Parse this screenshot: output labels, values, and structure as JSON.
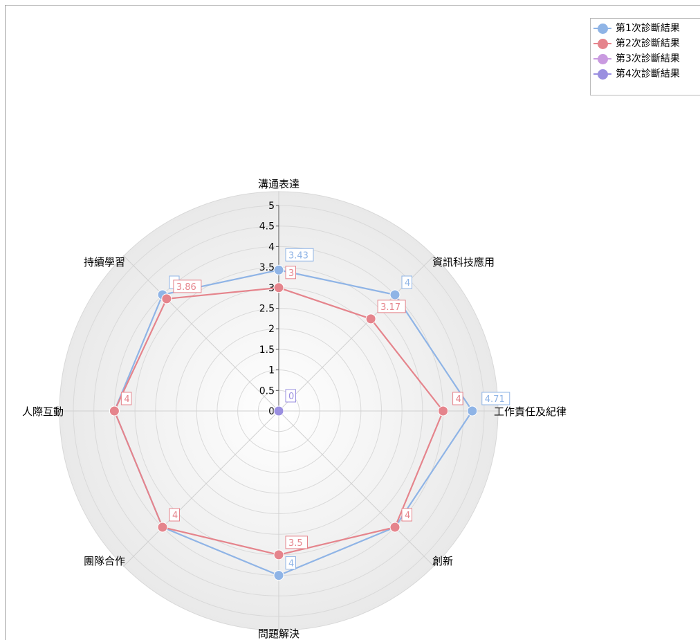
{
  "chart_data": {
    "type": "radar",
    "title": "",
    "axes": [
      "溝通表達",
      "資訊科技應用",
      "工作責任及紀律",
      "創新",
      "問題解決",
      "團隊合作",
      "人際互動",
      "持續學習"
    ],
    "radial_range": [
      0,
      5
    ],
    "radial_ticks": [
      "0",
      "0.5",
      "1",
      "1.5",
      "2",
      "2.5",
      "3",
      "3.5",
      "4",
      "4.5",
      "5"
    ],
    "grid": true,
    "legend_position": "top-right",
    "series": [
      {
        "name": "第1次診斷結果",
        "color": "#8fb4e6",
        "values": [
          3.43,
          4,
          4.71,
          4,
          4,
          4,
          4,
          4
        ]
      },
      {
        "name": "第2次診斷結果",
        "color": "#e5848c",
        "values": [
          3,
          3.17,
          4,
          4,
          3.5,
          4,
          4,
          3.86
        ]
      },
      {
        "name": "第3次診斷結果",
        "color": "#c99ae0",
        "values": [
          0,
          0,
          0,
          0,
          0,
          0,
          0,
          0
        ]
      },
      {
        "name": "第4次診斷結果",
        "color": "#9a8fe0",
        "values": [
          0,
          0,
          0,
          0,
          0,
          0,
          0,
          0
        ]
      }
    ],
    "data_labels": [
      {
        "series": 0,
        "axis": 0,
        "text": "3.43"
      },
      {
        "series": 1,
        "axis": 0,
        "text": "3"
      },
      {
        "series": 0,
        "axis": 1,
        "text": "4"
      },
      {
        "series": 1,
        "axis": 1,
        "text": "3.17"
      },
      {
        "series": 0,
        "axis": 2,
        "text": "4.71"
      },
      {
        "series": 1,
        "axis": 2,
        "text": "4"
      },
      {
        "series": 1,
        "axis": 3,
        "text": "4"
      },
      {
        "series": 0,
        "axis": 4,
        "text": "4"
      },
      {
        "series": 1,
        "axis": 4,
        "text": "3.5"
      },
      {
        "series": 1,
        "axis": 5,
        "text": "4"
      },
      {
        "series": 1,
        "axis": 6,
        "text": "4"
      },
      {
        "series": 0,
        "axis": 7,
        "text": ""
      },
      {
        "series": 1,
        "axis": 7,
        "text": "3.86"
      },
      {
        "series": 3,
        "axis": 0,
        "text": "0"
      }
    ]
  }
}
